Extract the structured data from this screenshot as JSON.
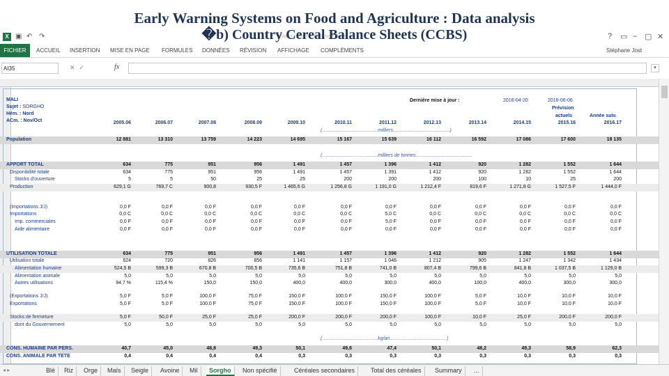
{
  "slide": {
    "title_line1": "Early Warning Systems on Food and Agriculture : Data analysis",
    "title_line2_prefix": "�",
    "title_line2": "b) Country Cereal Balance Sheets (CCBS)"
  },
  "qat": {
    "app_icon": "X",
    "faint_title": "Bilan céréalier - Microsoft Excel",
    "help": "?",
    "window_controls": [
      "▭",
      "–",
      "▢",
      "✕"
    ]
  },
  "ribbon": {
    "file_tab": "FICHIER",
    "tabs": [
      "ACCUEIL",
      "INSERTION",
      "MISE EN PAGE",
      "FORMULES",
      "DONNÉES",
      "RÉVISION",
      "AFFICHAGE",
      "COMPLÉMENTS"
    ],
    "user": "Stéphane Jost"
  },
  "formula_bar": {
    "name_box": "AI35",
    "fx_label": "fx",
    "formula_value": ""
  },
  "sheet": {
    "country": "MALI",
    "subject_label": "Sujet :",
    "subject_value": "SORGHO",
    "hem_label": "Hém. :",
    "hem_value": "Nord",
    "acm_label": "ACm. :",
    "acm_value": "Nov/Oct",
    "last_update_label": "Dernière mise à jour :",
    "last_update_1": "2016-04-20",
    "last_update_2": "2016-06-06",
    "prevision_label": "Prévision",
    "actuels_label": "actuels",
    "annee_suiv_label": "Année suiv.",
    "years": [
      "2005.06",
      "2006.07",
      "2007.08",
      "2008.09",
      "2009.10",
      "2010.11",
      "2011.12",
      "2012.13",
      "2013.14",
      "2014.15",
      "2015.16",
      "2016.17"
    ],
    "unit_millions": "(.........................................milliers..........................................)",
    "unit_tonnes": "(.........................................milliers de tonnes..........................................",
    "unit_kg": "(.........................................kg/an..........................................)",
    "rows": [
      {
        "label": "Population",
        "style": "b",
        "values": [
          "12 881",
          "13 310",
          "13 759",
          "14 223",
          "14 695",
          "15 167",
          "15 639",
          "16 112",
          "16 592",
          "17 086",
          "17 600",
          "18 135"
        ]
      },
      {
        "label": "APPORT TOTAL",
        "style": "b",
        "values": [
          "634",
          "775",
          "951",
          "956",
          "1 491",
          "1 457",
          "1 396",
          "1 412",
          "920",
          "1 282",
          "1 552",
          "1 644"
        ]
      },
      {
        "label": "Disponibilité totale",
        "style": "i1",
        "values": [
          "634",
          "775",
          "951",
          "956",
          "1 491",
          "1 457",
          "1 391",
          "1 412",
          "920",
          "1 282",
          "1 552",
          "1 644"
        ]
      },
      {
        "label": "Stocks d'ouverture",
        "style": "i2",
        "values": [
          "5",
          "5",
          "50",
          "25",
          "25",
          "200",
          "200",
          "200",
          "100",
          "10",
          "25",
          "200"
        ]
      },
      {
        "label": "Production",
        "style": "i1",
        "values": [
          "629,1 G",
          "769,7 C",
          "900,8",
          "930,5 F",
          "1 465,6 G",
          "1 256,8 G",
          "1 191,0 G",
          "1 212,4 F",
          "819,6 F",
          "1 271,8 G",
          "1 527,5 F",
          "1 444,0 F"
        ]
      },
      {
        "label": "(Importations J/J)",
        "style": "i1",
        "values": [
          "0,0 F",
          "0,0 F",
          "0,0 F",
          "0,0 F",
          "0,0 F",
          "0,0 F",
          "0,0 F",
          "0,0 F",
          "0,0 F",
          "0,0 F",
          "0,0 F",
          "0,0 F"
        ]
      },
      {
        "label": "Importations",
        "style": "i1",
        "values": [
          "0,0 C",
          "0,0 C",
          "0,0 C",
          "0,0 C",
          "0,0 C",
          "0,0 C",
          "5,0 C",
          "0,0 C",
          "0,0 C",
          "0,0 C",
          "0,0 C",
          "0,0 C"
        ]
      },
      {
        "label": "Imp. commerciales",
        "style": "i2",
        "values": [
          "0,0 F",
          "0,0 F",
          "0,0 F",
          "0,0 F",
          "0,0 F",
          "0,0 F",
          "5,0 F",
          "0,0 F",
          "0,0 F",
          "0,0 F",
          "0,0 F",
          "0,0 F"
        ]
      },
      {
        "label": "Aide alimentaire",
        "style": "i2",
        "values": [
          "0,0 F",
          "0,0 F",
          "0,0 F",
          "0,0 F",
          "0,0 F",
          "0,0 F",
          "0,0 F",
          "0,0 F",
          "0,0 F",
          "0,0 F",
          "0,0 F",
          "0,0 F"
        ]
      },
      {
        "label": "UTILISATION TOTALE",
        "style": "b",
        "values": [
          "634",
          "775",
          "951",
          "956",
          "1 491",
          "1 457",
          "1 396",
          "1 412",
          "920",
          "1 282",
          "1 552",
          "1 644"
        ]
      },
      {
        "label": "Utilisation totale",
        "style": "i1",
        "values": [
          "624",
          "720",
          "826",
          "856",
          "1 141",
          "1 157",
          "1 046",
          "1 212",
          "905",
          "1 247",
          "1 342",
          "1 434"
        ]
      },
      {
        "label": "Alimentation humaine",
        "style": "i2",
        "values": [
          "524,5 B",
          "599,3 B",
          "670,8 B",
          "700,5 B",
          "735,6 B",
          "751,8 B",
          "741,0 B",
          "807,4 B",
          "799,6 B",
          "841,8 B",
          "1 037,5 B",
          "1 129,0 B"
        ]
      },
      {
        "label": "Alimentation animale",
        "style": "i2",
        "values": [
          "5,0",
          "5,0",
          "5,0",
          "5,0",
          "5,0",
          "5,0",
          "5,0",
          "5,0",
          "5,0",
          "5,0",
          "5,0",
          "5,0"
        ]
      },
      {
        "label": "Autres utilisations",
        "style": "i2",
        "values": [
          "94,7 %",
          "115,4 %",
          "150,0",
          "150,0",
          "400,0",
          "400,0",
          "300,0",
          "400,0",
          "100,0",
          "400,0",
          "300,0",
          "300,0"
        ]
      },
      {
        "label": "(Exportations J/J)",
        "style": "i1",
        "values": [
          "5,0 F",
          "5,0 F",
          "100,0 F",
          "75,0 F",
          "150,0 F",
          "100,0 F",
          "150,0 F",
          "100,0 F",
          "5,0 F",
          "10,0 F",
          "10,0 F",
          "10,0 F"
        ]
      },
      {
        "label": "Exportations",
        "style": "i1",
        "values": [
          "5,0 F",
          "5,0 F",
          "100,0 F",
          "75,0 F",
          "150,0 F",
          "100,0 F",
          "150,0 F",
          "100,0 F",
          "5,0 F",
          "10,0 F",
          "10,0 F",
          "10,0 F"
        ]
      },
      {
        "label": "Stocks de fermeture",
        "style": "i1",
        "values": [
          "5,0 F",
          "50,0 F",
          "25,0 F",
          "25,0 F",
          "200,0 F",
          "200,0 F",
          "200,0 F",
          "100,0 F",
          "10,0 F",
          "25,0 F",
          "200,0 F",
          "200,0 F"
        ]
      },
      {
        "label": "dont du Gouvernement",
        "style": "i2",
        "values": [
          "5,0",
          "5,0",
          "5,0",
          "5,0",
          "5,0",
          "5,0",
          "5,0",
          "5,0",
          "5,0",
          "5,0",
          "5,0",
          "5,0"
        ]
      },
      {
        "label": "CONS. HUMAINE PAR PERS.",
        "style": "b",
        "values": [
          "40,7",
          "45,0",
          "48,8",
          "49,3",
          "50,1",
          "49,6",
          "47,4",
          "50,1",
          "48,2",
          "49,3",
          "58,9",
          "62,3"
        ]
      },
      {
        "label": "CONS. ANIMALE PAR TETE",
        "style": "b",
        "values": [
          "0,4",
          "0,4",
          "0,4",
          "0,4",
          "0,3",
          "0,3",
          "0,3",
          "0,3",
          "0,3",
          "0,3",
          "0,3",
          "0,3"
        ]
      }
    ]
  },
  "sheet_tabs": {
    "nav": "◂ ▸",
    "tabs": [
      "Blé",
      "Riz",
      "Orge",
      "Maïs",
      "Seigle",
      "Avoine",
      "Mil",
      "Sorgho",
      "Non spécifié",
      "Céréales secondaires",
      "Total des céréales",
      "Summary",
      "..."
    ],
    "active": "Sorgho"
  }
}
